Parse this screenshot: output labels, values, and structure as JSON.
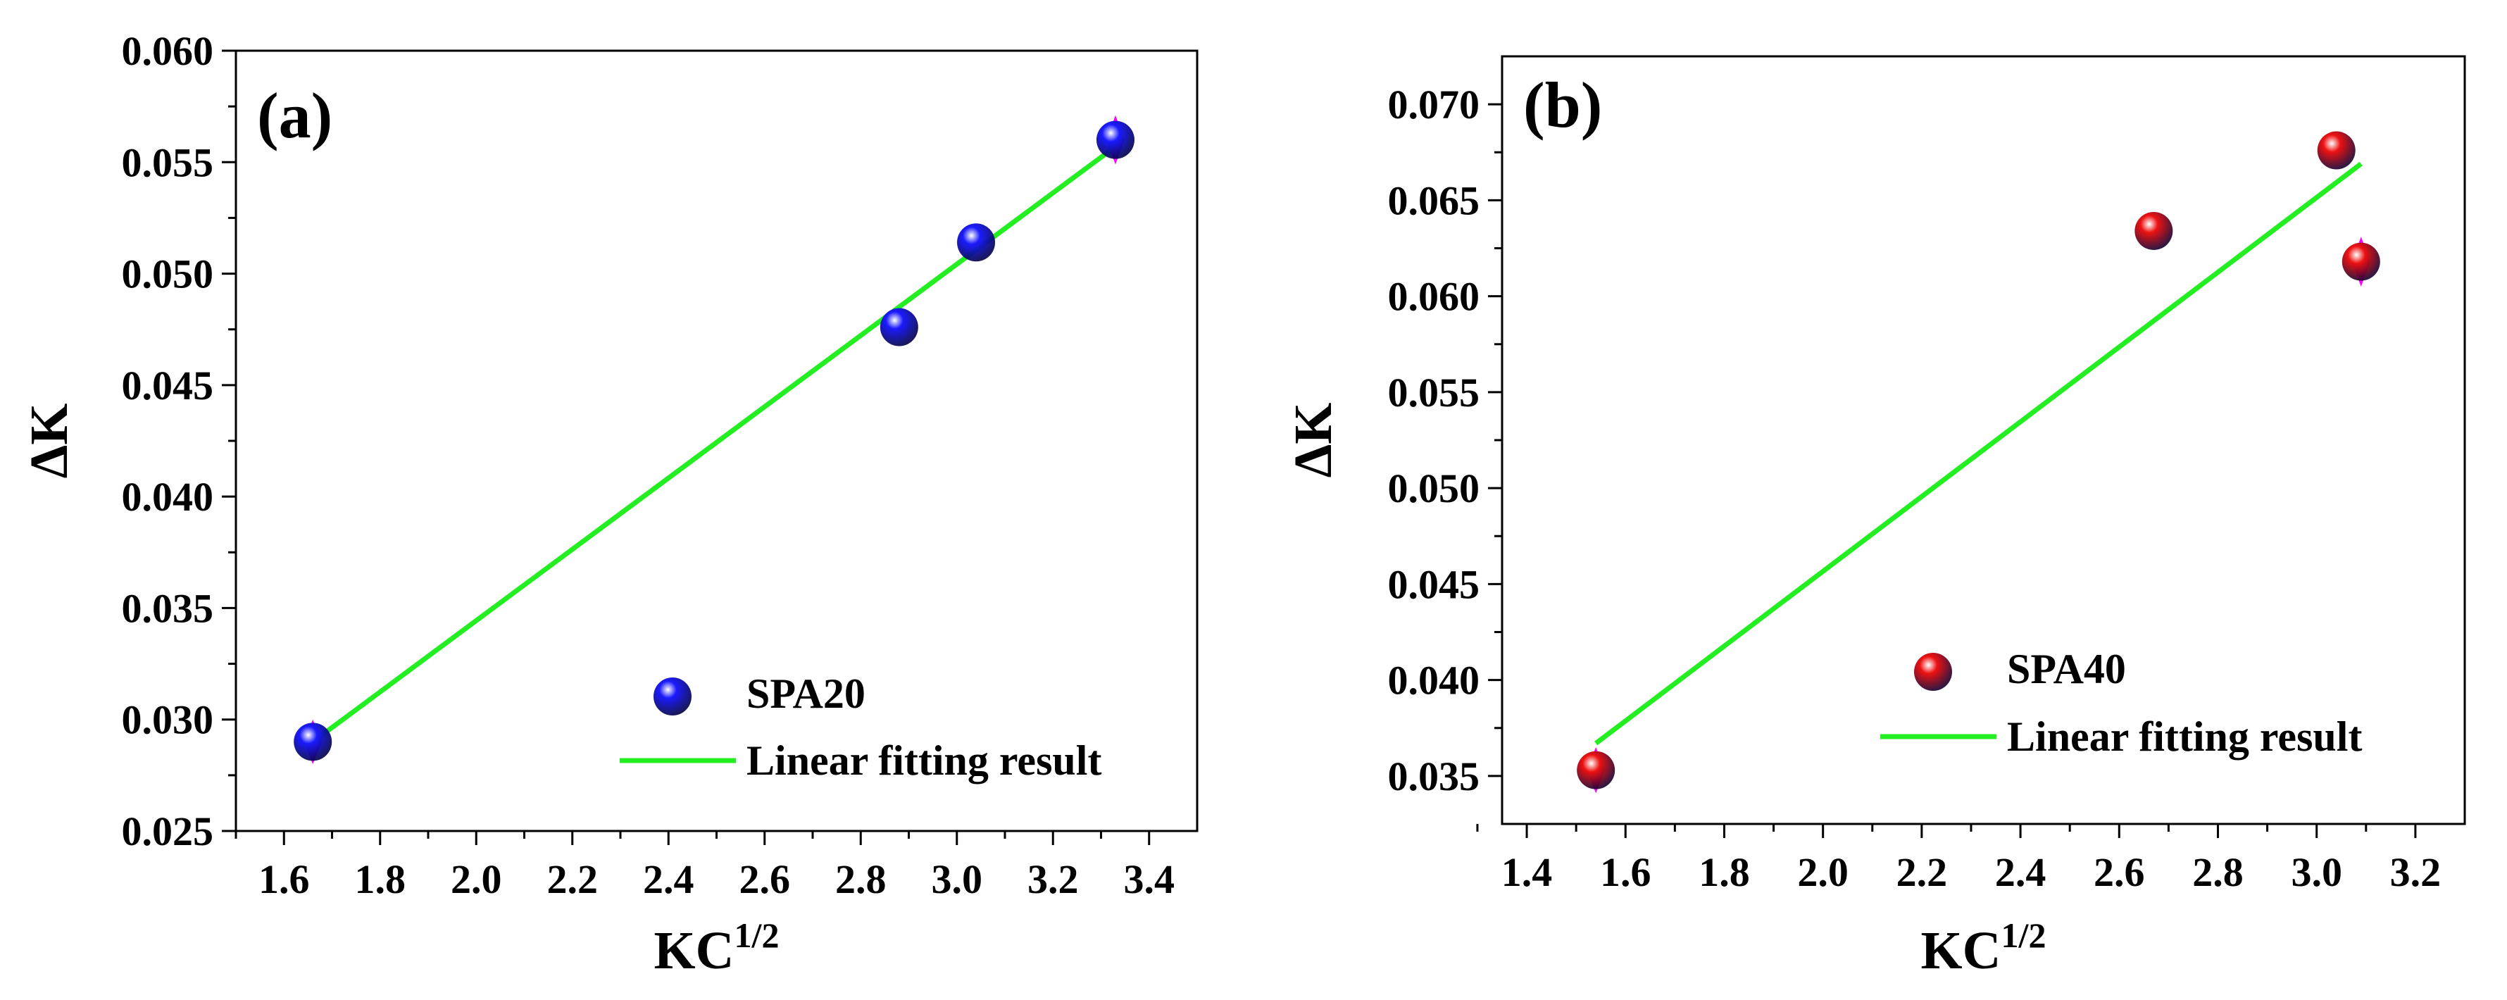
{
  "chart_data": [
    {
      "type": "scatter",
      "panel_label": "(a)",
      "xlabel_main": "KC",
      "xlabel_sup": "1/2",
      "ylabel": "ΔK",
      "xlim": [
        1.5,
        3.5
      ],
      "ylim": [
        0.025,
        0.06
      ],
      "x_ticks": [
        "1.6",
        "1.8",
        "2.0",
        "2.2",
        "2.4",
        "2.6",
        "2.8",
        "3.0",
        "3.2",
        "3.4"
      ],
      "y_ticks": [
        "0.025",
        "0.030",
        "0.035",
        "0.040",
        "0.045",
        "0.050",
        "0.055",
        "0.060"
      ],
      "series": [
        {
          "name": "SPA20",
          "kind": "points",
          "color": "#1a1aff",
          "x": [
            1.66,
            2.88,
            3.04,
            3.33
          ],
          "y": [
            0.029,
            0.0476,
            0.0514,
            0.056
          ],
          "error": [
            0.001,
            0,
            0,
            0.0011
          ]
        },
        {
          "name": "Linear fitting result",
          "kind": "line",
          "color": "#22ee22",
          "x": [
            1.66,
            3.33
          ],
          "y": [
            0.029,
            0.0557
          ]
        }
      ],
      "error_color": "#ff00ff",
      "legend": [
        "SPA20",
        "Linear fitting result"
      ],
      "legend_position": "bottom-right"
    },
    {
      "type": "scatter",
      "panel_label": "(b)",
      "xlabel_main": "KC",
      "xlabel_sup": "1/2",
      "ylabel": "ΔK",
      "xlim": [
        1.35,
        3.3
      ],
      "ylim": [
        0.0325,
        0.0725
      ],
      "x_ticks": [
        "1.4",
        "1.6",
        "1.8",
        "2.0",
        "2.2",
        "2.4",
        "2.6",
        "2.8",
        "3.0",
        "3.2"
      ],
      "y_ticks": [
        "0.035",
        "0.040",
        "0.045",
        "0.050",
        "0.055",
        "0.060",
        "0.065",
        "0.070"
      ],
      "series": [
        {
          "name": "SPA40",
          "kind": "points",
          "color": "#ee1111",
          "x": [
            1.54,
            2.67,
            3.04,
            3.09
          ],
          "y": [
            0.0353,
            0.0634,
            0.0676,
            0.0618
          ],
          "error": [
            0.0012,
            0,
            0,
            0.0013
          ]
        },
        {
          "name": "Linear fitting result",
          "kind": "line",
          "color": "#22ee22",
          "x": [
            1.54,
            3.09
          ],
          "y": [
            0.0367,
            0.0669
          ]
        }
      ],
      "error_color": "#ff00ff",
      "legend": [
        "SPA40",
        "Linear fitting result"
      ],
      "legend_position": "bottom-right"
    }
  ]
}
